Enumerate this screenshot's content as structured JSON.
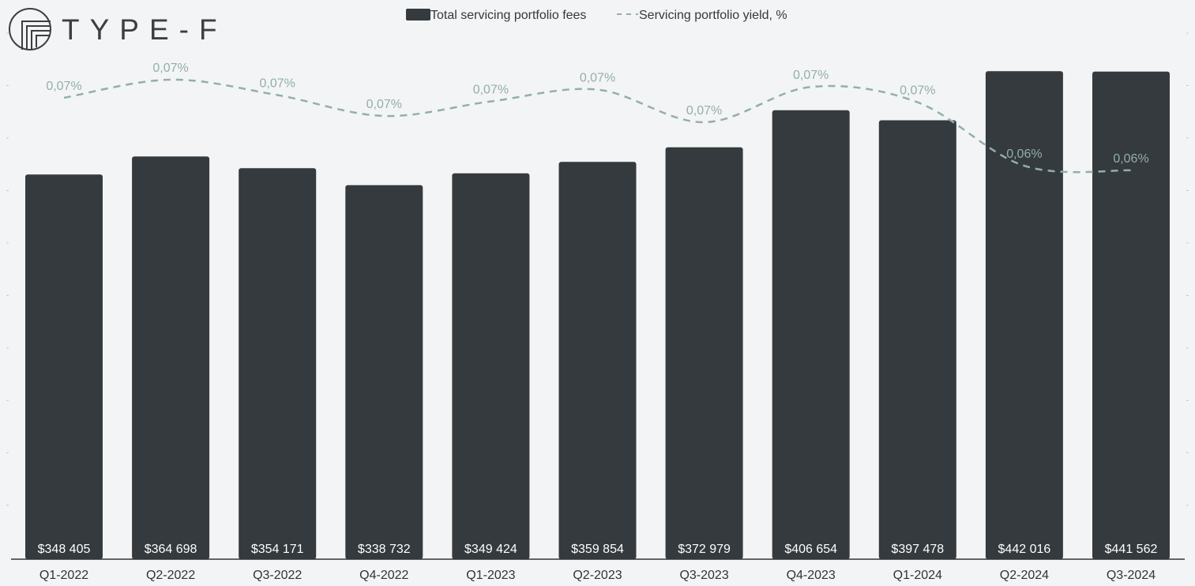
{
  "brand": {
    "name": "TYPE-F",
    "display": "TYPE-F"
  },
  "legend": {
    "fees_label": "Total servicing portfolio fees",
    "yield_label": "Servicing portfolio yield, %"
  },
  "colors": {
    "bar": "#343a3d",
    "yield_line": "#93afa8",
    "background": "#f3f4f5",
    "axis": "#2f3437"
  },
  "chart_data": {
    "type": "bar",
    "title": "",
    "xlabel": "",
    "ylabel": "",
    "categories": [
      "Q1-2022",
      "Q2-2022",
      "Q3-2022",
      "Q4-2022",
      "Q1-2023",
      "Q2-2023",
      "Q3-2023",
      "Q4-2023",
      "Q1-2024",
      "Q2-2024",
      "Q3-2024"
    ],
    "series": [
      {
        "name": "Total servicing portfolio fees",
        "type": "bar",
        "axis": "left",
        "values": [
          348405,
          364698,
          354171,
          338732,
          349424,
          359854,
          372979,
          406654,
          397478,
          442016,
          441562
        ],
        "labels": [
          "$348 405",
          "$364 698",
          "$354 171",
          "$338 732",
          "$349 424",
          "$359 854",
          "$372 979",
          "$406 654",
          "$397 478",
          "$442 016",
          "$441 562"
        ]
      },
      {
        "name": "Servicing portfolio yield, %",
        "type": "line",
        "style": "dashed",
        "axis": "right",
        "values": [
          0.0705,
          0.0725,
          0.0708,
          0.0685,
          0.0701,
          0.0714,
          0.0678,
          0.0717,
          0.07,
          0.063,
          0.0625
        ],
        "labels": [
          "0,07%",
          "0,07%",
          "0,07%",
          "0,07%",
          "0,07%",
          "0,07%",
          "0,07%",
          "0,07%",
          "0,07%",
          "0,06%",
          "0,06%"
        ]
      }
    ],
    "ylim": [
      0,
      520000
    ],
    "y2lim": [
      0,
      0.08
    ],
    "grid": false,
    "legend_position": "top-center"
  }
}
